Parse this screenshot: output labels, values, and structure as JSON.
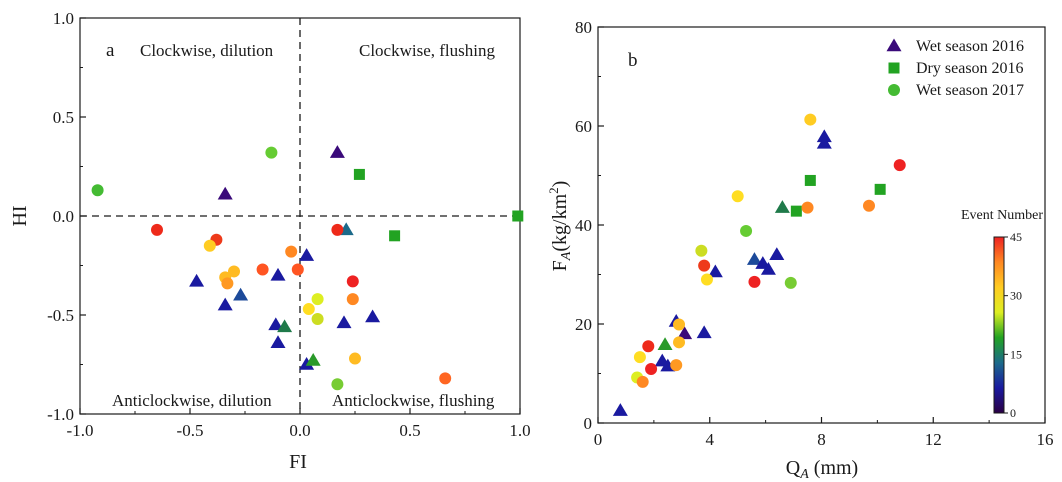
{
  "chart_data": [
    {
      "type": "scatter",
      "panel_label": "a",
      "xlabel": "FI",
      "ylabel": "HI",
      "xlim": [
        -1.0,
        1.0
      ],
      "ylim": [
        -1.0,
        1.0
      ],
      "xticks": [
        "-1.0",
        "-0.5",
        "0.0",
        "0.5",
        "1.0"
      ],
      "yticks": [
        "-1.0",
        "-0.5",
        "0.0",
        "0.5",
        "1.0"
      ],
      "reference_lines": {
        "x": 0,
        "y": 0,
        "style": "dashed"
      },
      "quadrant_labels": {
        "top_left": "Clockwise, dilution",
        "top_right": "Clockwise, flushing",
        "bottom_left": "Anticlockwise, dilution",
        "bottom_right": "Anticlockwise, flushing"
      },
      "series": [
        {
          "marker": "triangle",
          "points": [
            {
              "x": -0.47,
              "y": -0.33,
              "c": "#1a1aa0"
            },
            {
              "x": -0.34,
              "y": 0.11,
              "c": "#3a0a7a"
            },
            {
              "x": -0.34,
              "y": -0.45,
              "c": "#1a1aa0"
            },
            {
              "x": -0.27,
              "y": -0.4,
              "c": "#1c4a9a"
            },
            {
              "x": -0.1,
              "y": -0.3,
              "c": "#1a1aa0"
            },
            {
              "x": -0.11,
              "y": -0.55,
              "c": "#1a1aa0"
            },
            {
              "x": -0.1,
              "y": -0.64,
              "c": "#1a1aa0"
            },
            {
              "x": -0.07,
              "y": -0.56,
              "c": "#1f7a4a"
            },
            {
              "x": 0.03,
              "y": -0.2,
              "c": "#1a1aa0"
            },
            {
              "x": 0.03,
              "y": -0.75,
              "c": "#1a1aa0"
            },
            {
              "x": 0.06,
              "y": -0.73,
              "c": "#2a9a2a"
            },
            {
              "x": 0.17,
              "y": 0.32,
              "c": "#3a0a7a"
            },
            {
              "x": 0.2,
              "y": -0.54,
              "c": "#1a1aa0"
            },
            {
              "x": 0.21,
              "y": -0.07,
              "c": "#1c6a8a"
            },
            {
              "x": 0.33,
              "y": -0.51,
              "c": "#1a1aa0"
            }
          ]
        },
        {
          "marker": "square",
          "points": [
            {
              "x": 0.27,
              "y": 0.21,
              "c": "#22a322"
            },
            {
              "x": 0.43,
              "y": -0.1,
              "c": "#22a322"
            },
            {
              "x": 0.99,
              "y": 0.0,
              "c": "#22a322"
            }
          ]
        },
        {
          "marker": "circle",
          "points": [
            {
              "x": -0.92,
              "y": 0.13,
              "c": "#44bb33"
            },
            {
              "x": -0.13,
              "y": 0.32,
              "c": "#66cc33"
            },
            {
              "x": -0.65,
              "y": -0.07,
              "c": "#ee2a1a"
            },
            {
              "x": -0.38,
              "y": -0.12,
              "c": "#ee3a1a"
            },
            {
              "x": -0.41,
              "y": -0.15,
              "c": "#ffcc22"
            },
            {
              "x": -0.34,
              "y": -0.31,
              "c": "#ffbb22"
            },
            {
              "x": -0.33,
              "y": -0.34,
              "c": "#ff9922"
            },
            {
              "x": -0.3,
              "y": -0.28,
              "c": "#ffbb22"
            },
            {
              "x": -0.17,
              "y": -0.27,
              "c": "#ff5522"
            },
            {
              "x": -0.04,
              "y": -0.18,
              "c": "#ff8822"
            },
            {
              "x": -0.01,
              "y": -0.27,
              "c": "#ff5522"
            },
            {
              "x": 0.04,
              "y": -0.47,
              "c": "#ffdd22"
            },
            {
              "x": 0.08,
              "y": -0.42,
              "c": "#ddee22"
            },
            {
              "x": 0.08,
              "y": -0.52,
              "c": "#ccdd22"
            },
            {
              "x": 0.17,
              "y": -0.07,
              "c": "#ee2a1a"
            },
            {
              "x": 0.17,
              "y": -0.85,
              "c": "#77cc33"
            },
            {
              "x": 0.24,
              "y": -0.33,
              "c": "#ee2222"
            },
            {
              "x": 0.24,
              "y": -0.42,
              "c": "#ff8822"
            },
            {
              "x": 0.25,
              "y": -0.72,
              "c": "#ffbb22"
            },
            {
              "x": 0.66,
              "y": -0.82,
              "c": "#ff6622"
            }
          ]
        }
      ]
    },
    {
      "type": "scatter",
      "panel_label": "b",
      "xlabel": "Q_A (mm)",
      "ylabel": "F_A(kg/km^2)",
      "xlim": [
        0,
        16
      ],
      "ylim": [
        0,
        80
      ],
      "xticks": [
        "0",
        "4",
        "8",
        "12",
        "16"
      ],
      "yticks": [
        "0",
        "20",
        "40",
        "60",
        "80"
      ],
      "legend_position": "top-right",
      "series": [
        {
          "name": "Wet season 2016",
          "marker": "triangle",
          "legend_color": "#3a0a7a",
          "points": [
            {
              "x": 0.8,
              "y": 2.5,
              "c": "#1a1aa0"
            },
            {
              "x": 2.3,
              "y": 12.5,
              "c": "#1a1aa0"
            },
            {
              "x": 2.5,
              "y": 11.5,
              "c": "#1a1aa0"
            },
            {
              "x": 2.8,
              "y": 20.5,
              "c": "#1a1aa0"
            },
            {
              "x": 3.1,
              "y": 18.0,
              "c": "#3a0a7a"
            },
            {
              "x": 3.8,
              "y": 18.2,
              "c": "#1a1aa0"
            },
            {
              "x": 4.2,
              "y": 30.5,
              "c": "#1a1aa0"
            },
            {
              "x": 5.6,
              "y": 33.0,
              "c": "#1c4a9a"
            },
            {
              "x": 5.9,
              "y": 32.2,
              "c": "#1a1aa0"
            },
            {
              "x": 6.1,
              "y": 31.0,
              "c": "#1a1aa0"
            },
            {
              "x": 6.4,
              "y": 34.0,
              "c": "#1a1aa0"
            },
            {
              "x": 6.6,
              "y": 43.5,
              "c": "#1f7a4a"
            },
            {
              "x": 8.1,
              "y": 57.8,
              "c": "#1a1aa0"
            },
            {
              "x": 8.1,
              "y": 56.5,
              "c": "#1a1aa0"
            },
            {
              "x": 2.4,
              "y": 15.8,
              "c": "#2a9a2a"
            }
          ]
        },
        {
          "name": "Dry season 2016",
          "marker": "square",
          "legend_color": "#22a322",
          "points": [
            {
              "x": 7.1,
              "y": 42.8,
              "c": "#22a322"
            },
            {
              "x": 7.6,
              "y": 49.0,
              "c": "#22a322"
            },
            {
              "x": 10.1,
              "y": 47.2,
              "c": "#22a322"
            }
          ]
        },
        {
          "name": "Wet season 2017",
          "marker": "circle",
          "legend_color": "#44bb33",
          "points": [
            {
              "x": 1.4,
              "y": 9.2,
              "c": "#ddee22"
            },
            {
              "x": 1.5,
              "y": 13.3,
              "c": "#ffdd22"
            },
            {
              "x": 1.6,
              "y": 8.3,
              "c": "#ff8822"
            },
            {
              "x": 1.8,
              "y": 15.5,
              "c": "#ee2a1a"
            },
            {
              "x": 1.9,
              "y": 10.9,
              "c": "#ee2222"
            },
            {
              "x": 2.8,
              "y": 11.7,
              "c": "#ff9922"
            },
            {
              "x": 2.9,
              "y": 16.3,
              "c": "#ffbb22"
            },
            {
              "x": 2.9,
              "y": 19.9,
              "c": "#ffbb22"
            },
            {
              "x": 3.7,
              "y": 34.8,
              "c": "#ccdd22"
            },
            {
              "x": 3.8,
              "y": 31.8,
              "c": "#ee3a1a"
            },
            {
              "x": 3.9,
              "y": 29.0,
              "c": "#ffdd22"
            },
            {
              "x": 5.0,
              "y": 45.8,
              "c": "#ffdd22"
            },
            {
              "x": 5.3,
              "y": 38.8,
              "c": "#66cc33"
            },
            {
              "x": 5.6,
              "y": 28.5,
              "c": "#ee2222"
            },
            {
              "x": 6.9,
              "y": 28.3,
              "c": "#77cc33"
            },
            {
              "x": 7.5,
              "y": 43.5,
              "c": "#ff8822"
            },
            {
              "x": 7.6,
              "y": 61.3,
              "c": "#ffcc22"
            },
            {
              "x": 9.7,
              "y": 43.9,
              "c": "#ff8822"
            },
            {
              "x": 10.8,
              "y": 52.1,
              "c": "#ee2222"
            }
          ]
        }
      ],
      "colorbar": {
        "title": "Event Number",
        "ticks": [
          "0",
          "15",
          "30",
          "45"
        ],
        "range": [
          0,
          45
        ],
        "colors": [
          "#2a0044",
          "#1a1aa0",
          "#1c6a8a",
          "#22a322",
          "#ddee22",
          "#ffcc22",
          "#ff8822",
          "#ee2222"
        ]
      }
    }
  ]
}
